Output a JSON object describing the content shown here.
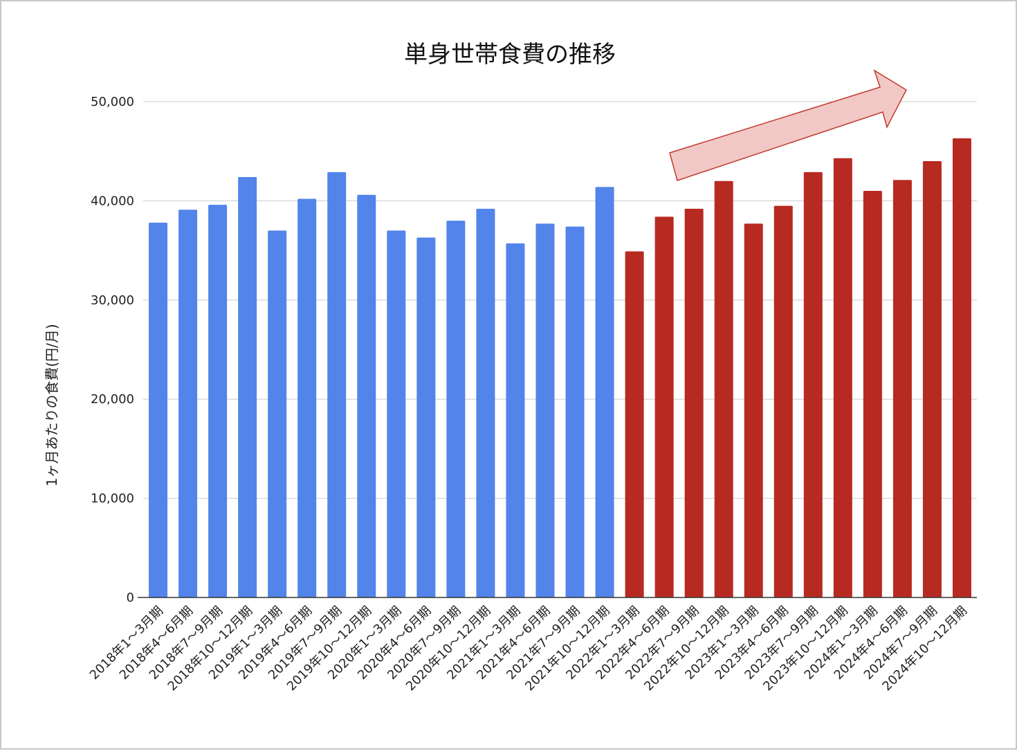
{
  "chart_data": {
    "type": "bar",
    "title": "単身世帯食費の推移",
    "xlabel": "",
    "ylabel": "1ヶ月あたりの食費(円/月)",
    "ylim": [
      0,
      50000
    ],
    "yticks": [
      0,
      10000,
      20000,
      30000,
      40000,
      50000
    ],
    "ytick_labels": [
      "0",
      "10,000",
      "20,000",
      "30,000",
      "40,000",
      "50,000"
    ],
    "grid": true,
    "legend": "none",
    "categories": [
      "2018年1～3月期",
      "2018年4～6月期",
      "2018年7～9月期",
      "2018年10～12月期",
      "2019年1～3月期",
      "2019年4～6月期",
      "2019年7～9月期",
      "2019年10～12月期",
      "2020年1～3月期",
      "2020年4～6月期",
      "2020年7～9月期",
      "2020年10～12月期",
      "2021年1～3月期",
      "2021年4～6月期",
      "2021年7～9月期",
      "2021年10～12月期",
      "2022年1～3月期",
      "2022年4～6月期",
      "2022年7～9月期",
      "2022年10～12月期",
      "2023年1～3月期",
      "2023年4～6月期",
      "2023年7～9月期",
      "2023年10～12月期",
      "2024年1～3月期",
      "2024年4～6月期",
      "2024年7～9月期",
      "2024年10～12月期"
    ],
    "values": [
      37800,
      39100,
      39600,
      42400,
      37000,
      40200,
      42900,
      40600,
      37000,
      36300,
      38000,
      39200,
      35700,
      37700,
      37400,
      41400,
      34900,
      38400,
      39200,
      42000,
      37700,
      39500,
      42900,
      44300,
      41000,
      42100,
      44000,
      46300
    ],
    "colors": {
      "blue": "#5384ea",
      "red": "#b72a22",
      "arrow_fill": "#f2c8c6",
      "arrow_stroke": "#c0392b",
      "grid": "#cccccc",
      "axis": "#333333"
    },
    "red_start_index": 16,
    "annotations": [
      {
        "type": "arrow",
        "description": "upward trend arrow over 2022-2024",
        "from_index": 17,
        "to_index": 26
      }
    ]
  }
}
